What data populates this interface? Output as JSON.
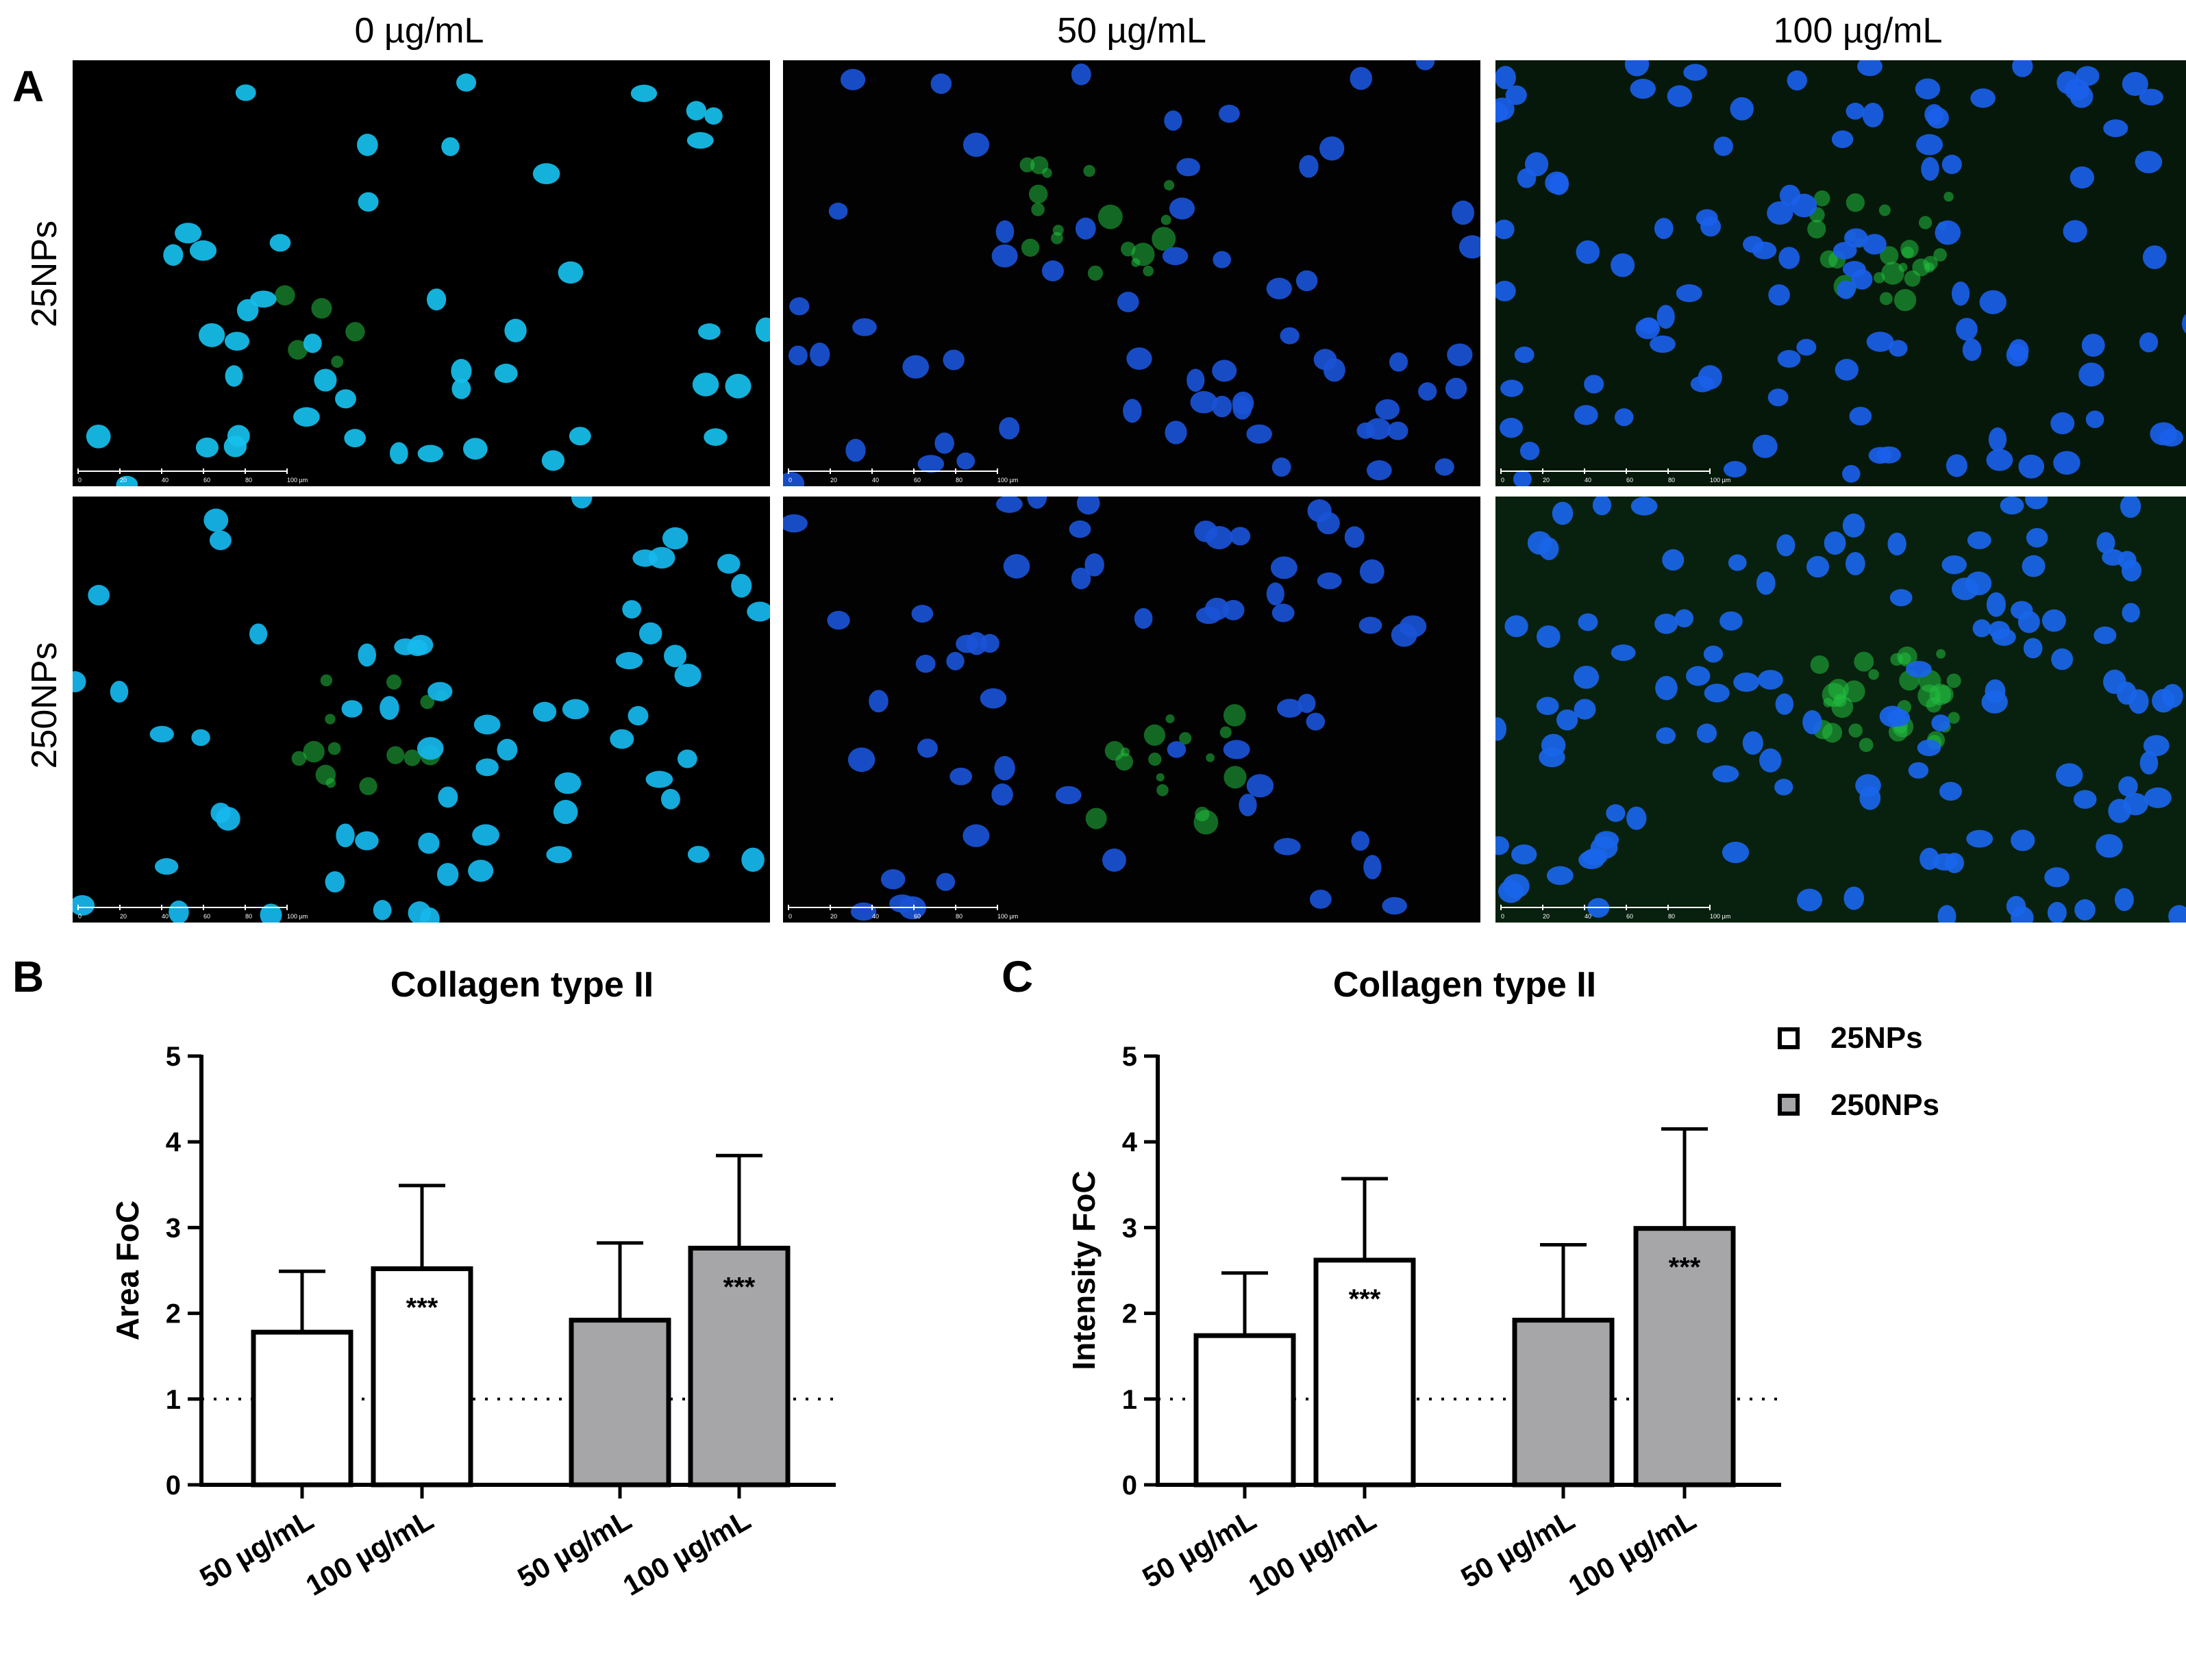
{
  "panel_a": {
    "letter": "A",
    "column_titles": [
      "0 µg/mL",
      "50 µg/mL",
      "100 µg/mL"
    ],
    "row_titles": [
      "25NPs",
      "250NPs"
    ],
    "scale_bar": {
      "ticks": [
        "0",
        "20",
        "40",
        "60",
        "80",
        "100 µm"
      ]
    },
    "colors": {
      "nuclei": "#1e90ff",
      "collagen": "#22c040",
      "background": "#000000"
    }
  },
  "panel_b": {
    "letter": "B"
  },
  "panel_c": {
    "letter": "C"
  },
  "legend": {
    "items": [
      {
        "label": "25NPs",
        "color": "#ffffff"
      },
      {
        "label": "250NPs",
        "color": "#a6a6a8"
      }
    ]
  },
  "chart_data": [
    {
      "type": "bar",
      "title": "Collagen type II",
      "ylabel": "Area FoC",
      "xlabel": "",
      "ylim": [
        0,
        5
      ],
      "yticks": [
        0,
        1,
        2,
        3,
        4,
        5
      ],
      "reference_line": 1,
      "groups": [
        "25NPs",
        "250NPs"
      ],
      "categories": [
        "50 µg/mL",
        "100 µg/mL",
        "50 µg/mL",
        "100 µg/mL"
      ],
      "bars": [
        {
          "group": "25NPs",
          "category": "50 µg/mL",
          "value": 1.78,
          "error": 0.71,
          "sig": ""
        },
        {
          "group": "25NPs",
          "category": "100 µg/mL",
          "value": 2.52,
          "error": 0.97,
          "sig": "***"
        },
        {
          "group": "250NPs",
          "category": "50 µg/mL",
          "value": 1.92,
          "error": 0.9,
          "sig": ""
        },
        {
          "group": "250NPs",
          "category": "100 µg/mL",
          "value": 2.76,
          "error": 1.08,
          "sig": "***"
        }
      ]
    },
    {
      "type": "bar",
      "title": "Collagen type II",
      "ylabel": "Intensity FoC",
      "xlabel": "",
      "ylim": [
        0,
        5
      ],
      "yticks": [
        0,
        1,
        2,
        3,
        4,
        5
      ],
      "reference_line": 1,
      "groups": [
        "25NPs",
        "250NPs"
      ],
      "categories": [
        "50 µg/mL",
        "100 µg/mL",
        "50 µg/mL",
        "100 µg/mL"
      ],
      "legend": "top-right",
      "bars": [
        {
          "group": "25NPs",
          "category": "50 µg/mL",
          "value": 1.74,
          "error": 0.73,
          "sig": ""
        },
        {
          "group": "25NPs",
          "category": "100 µg/mL",
          "value": 2.62,
          "error": 0.95,
          "sig": "***"
        },
        {
          "group": "250NPs",
          "category": "50 µg/mL",
          "value": 1.92,
          "error": 0.88,
          "sig": ""
        },
        {
          "group": "250NPs",
          "category": "100 µg/mL",
          "value": 2.99,
          "error": 1.16,
          "sig": "***"
        }
      ]
    }
  ]
}
